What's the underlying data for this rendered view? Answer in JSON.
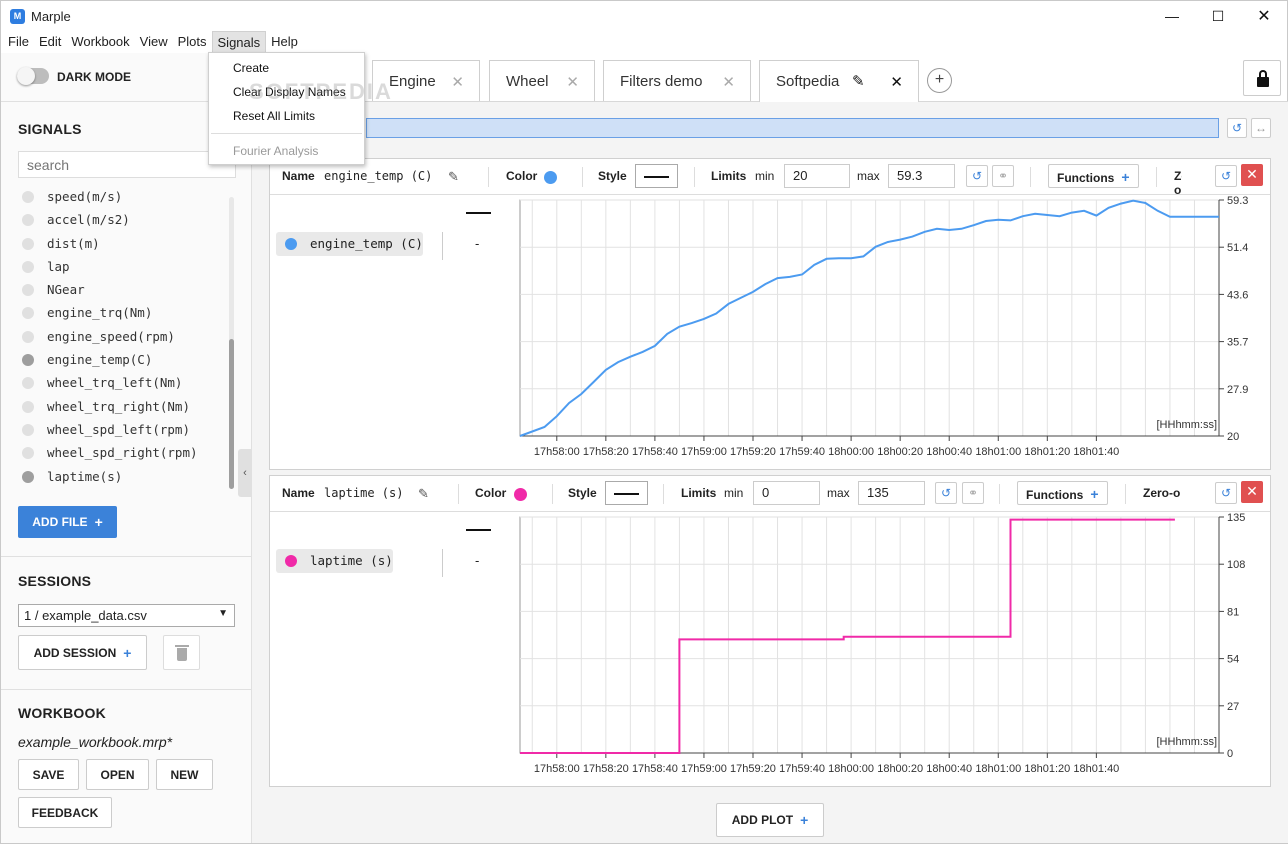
{
  "app": {
    "title": "Marple",
    "logo": "M"
  },
  "menubar": [
    "File",
    "Edit",
    "Workbook",
    "View",
    "Plots",
    "Signals",
    "Help"
  ],
  "signals_menu": {
    "items": [
      "Create",
      "Clear Display Names",
      "Reset All Limits"
    ],
    "disabled_item": "Fourier Analysis"
  },
  "sidebar": {
    "dark_mode_label": "DARK MODE",
    "signals_title": "SIGNALS",
    "search_placeholder": "search",
    "signals": [
      {
        "name": "speed(m/s)",
        "active": false
      },
      {
        "name": "accel(m/s2)",
        "active": false
      },
      {
        "name": "dist(m)",
        "active": false
      },
      {
        "name": "lap",
        "active": false
      },
      {
        "name": "NGear",
        "active": false
      },
      {
        "name": "engine_trq(Nm)",
        "active": false
      },
      {
        "name": "engine_speed(rpm)",
        "active": false
      },
      {
        "name": "engine_temp(C)",
        "active": true
      },
      {
        "name": "wheel_trq_left(Nm)",
        "active": false
      },
      {
        "name": "wheel_trq_right(Nm)",
        "active": false
      },
      {
        "name": "wheel_spd_left(rpm)",
        "active": false
      },
      {
        "name": "wheel_spd_right(rpm)",
        "active": false
      },
      {
        "name": "laptime(s)",
        "active": true
      }
    ],
    "add_file": "ADD FILE",
    "sessions_title": "SESSIONS",
    "session_selected": "1 / example_data.csv",
    "add_session": "ADD SESSION",
    "workbook_title": "WORKBOOK",
    "workbook_file": "example_workbook.mrp*",
    "save": "SAVE",
    "open": "OPEN",
    "new": "NEW",
    "feedback": "FEEDBACK"
  },
  "tabs": [
    "Engine",
    "Wheel",
    "Filters demo",
    "Softpedia"
  ],
  "active_tab": "Softpedia",
  "watermark": "SOFTPEDIA",
  "toolbar_labels": {
    "name": "Name",
    "color": "Color",
    "style": "Style",
    "limits": "Limits",
    "min": "min",
    "max": "max",
    "functions": "Functions",
    "zero": "Zero-o"
  },
  "plots": [
    {
      "signal": "engine_temp (C)",
      "color": "#4c9bf0",
      "min": "20",
      "max": "59.3",
      "legend_value": "-",
      "time_label": "[HHhmm:ss]"
    },
    {
      "signal": "laptime (s)",
      "color": "#f02aa8",
      "min": "0",
      "max": "135",
      "legend_value": "-",
      "time_label": "[HHhmm:ss]"
    }
  ],
  "add_plot": "ADD PLOT",
  "chart_data": [
    {
      "type": "line",
      "series": [
        {
          "name": "engine_temp (C)",
          "color": "#4c9bf0"
        }
      ],
      "x_ticks": [
        "17h58:00",
        "17h58:20",
        "17h58:40",
        "17h59:00",
        "17h59:20",
        "17h59:40",
        "18h00:00",
        "18h00:20",
        "18h00:40",
        "18h01:00",
        "18h01:20",
        "18h01:40"
      ],
      "y_ticks": [
        "59.3",
        "51.4",
        "43.6",
        "35.7",
        "27.9",
        "20"
      ],
      "ylim": [
        20,
        59.3
      ],
      "x_seconds_from_start": [
        -15,
        -5,
        0,
        5,
        10,
        15,
        20,
        25,
        30,
        35,
        40,
        45,
        50,
        55,
        60,
        65,
        70,
        75,
        80,
        85,
        90,
        95,
        100,
        105,
        110,
        115,
        120,
        125,
        130,
        135,
        140,
        145,
        150,
        155,
        160,
        165,
        170,
        175,
        180,
        185,
        190,
        195,
        200,
        205,
        210,
        215,
        220,
        225,
        230,
        235,
        240,
        245,
        250,
        255,
        260,
        265,
        270
      ],
      "values": [
        20,
        21.5,
        23.3,
        25.5,
        27,
        29,
        31,
        32.3,
        33.2,
        34,
        35,
        37,
        38.2,
        38.8,
        39.5,
        40.4,
        42,
        43,
        44,
        45.3,
        46.3,
        46.5,
        46.9,
        48.5,
        49.5,
        49.6,
        49.6,
        49.9,
        51.5,
        52.3,
        52.7,
        53.2,
        54,
        54.5,
        54.3,
        54.5,
        55.1,
        55.8,
        56,
        55.9,
        56.6,
        57,
        56.8,
        56.6,
        57.2,
        57.5,
        56.7,
        58,
        58.7,
        59.2,
        58.8,
        57.5,
        56.5,
        56.5,
        56.5,
        56.5,
        56.5
      ]
    },
    {
      "type": "line",
      "series": [
        {
          "name": "laptime (s)",
          "color": "#f02aa8"
        }
      ],
      "x_ticks": [
        "17h58:00",
        "17h58:20",
        "17h58:40",
        "17h59:00",
        "17h59:20",
        "17h59:40",
        "18h00:00",
        "18h00:20",
        "18h00:40",
        "18h01:00",
        "18h01:20",
        "18h01:40"
      ],
      "y_ticks": [
        "135",
        "108",
        "81",
        "54",
        "27",
        "0"
      ],
      "ylim": [
        0,
        135
      ],
      "x_seconds_from_start": [
        -15,
        50,
        50,
        117,
        117,
        185,
        185,
        252
      ],
      "values": [
        0,
        0,
        65,
        65,
        66.5,
        66.5,
        133.5,
        133.5
      ]
    }
  ]
}
